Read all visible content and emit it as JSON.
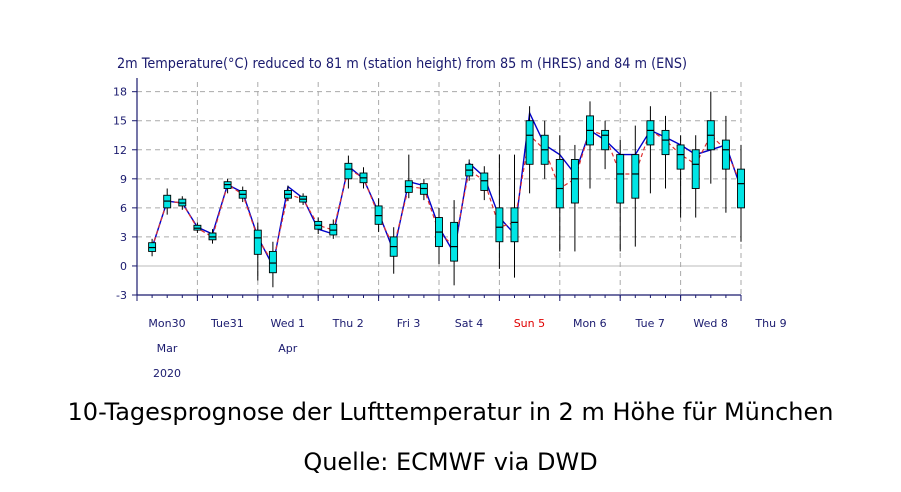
{
  "chart_data": {
    "type": "box-ensemble-line",
    "title": "2m Temperature(°C) reduced to 81 m (station height) from 85 m (HRES) and 84 m (ENS)",
    "ylim": [
      -3,
      19
    ],
    "yticks": [
      -3,
      0,
      3,
      6,
      9,
      12,
      15,
      18
    ],
    "xlim": [
      0,
      10
    ],
    "xticks": [
      {
        "x": 0,
        "lines": [
          "Mon30",
          "Mar",
          "2020"
        ],
        "color": "#1a1a6e"
      },
      {
        "x": 1,
        "lines": [
          "Tue31"
        ],
        "color": "#1a1a6e"
      },
      {
        "x": 2,
        "lines": [
          "Wed 1",
          "Apr"
        ],
        "color": "#1a1a6e"
      },
      {
        "x": 3,
        "lines": [
          "Thu 2"
        ],
        "color": "#1a1a6e"
      },
      {
        "x": 4,
        "lines": [
          "Fri 3"
        ],
        "color": "#1a1a6e"
      },
      {
        "x": 5,
        "lines": [
          "Sat 4"
        ],
        "color": "#1a1a6e"
      },
      {
        "x": 6,
        "lines": [
          "Sun 5"
        ],
        "color": "#e00000"
      },
      {
        "x": 7,
        "lines": [
          "Mon 6"
        ],
        "color": "#1a1a6e"
      },
      {
        "x": 8,
        "lines": [
          "Tue 7"
        ],
        "color": "#1a1a6e"
      },
      {
        "x": 9,
        "lines": [
          "Wed 8"
        ],
        "color": "#1a1a6e"
      },
      {
        "x": 10,
        "lines": [
          "Thu 9"
        ],
        "color": "#1a1a6e"
      }
    ],
    "grid": true,
    "colors": {
      "box": "#00e5e5",
      "hres": "#0000cc",
      "ens_median": "#e03030",
      "whisker": "#000000",
      "grid": "#aaaaaa"
    },
    "boxes": [
      {
        "x": 0.25,
        "min": 1.0,
        "q1": 1.5,
        "med": 1.9,
        "q3": 2.4,
        "max": 2.8
      },
      {
        "x": 0.5,
        "min": 5.3,
        "q1": 6.0,
        "med": 6.7,
        "q3": 7.3,
        "max": 8.0
      },
      {
        "x": 0.75,
        "min": 5.8,
        "q1": 6.2,
        "med": 6.5,
        "q3": 6.9,
        "max": 7.2
      },
      {
        "x": 1.0,
        "min": 3.4,
        "q1": 3.7,
        "med": 3.9,
        "q3": 4.2,
        "max": 4.5
      },
      {
        "x": 1.25,
        "min": 2.3,
        "q1": 2.7,
        "med": 3.0,
        "q3": 3.4,
        "max": 3.8
      },
      {
        "x": 1.5,
        "min": 7.5,
        "q1": 8.0,
        "med": 8.4,
        "q3": 8.7,
        "max": 9.0
      },
      {
        "x": 1.75,
        "min": 6.6,
        "q1": 7.0,
        "med": 7.4,
        "q3": 7.8,
        "max": 8.2
      },
      {
        "x": 2.0,
        "min": -1.5,
        "q1": 1.2,
        "med": 2.9,
        "q3": 3.7,
        "max": 4.5
      },
      {
        "x": 2.25,
        "min": -2.2,
        "q1": -0.7,
        "med": 0.3,
        "q3": 1.5,
        "max": 2.5
      },
      {
        "x": 2.5,
        "min": 6.7,
        "q1": 7.0,
        "med": 7.4,
        "q3": 7.8,
        "max": 8.3
      },
      {
        "x": 2.75,
        "min": 6.3,
        "q1": 6.6,
        "med": 6.9,
        "q3": 7.2,
        "max": 7.5
      },
      {
        "x": 3.0,
        "min": 3.3,
        "q1": 3.8,
        "med": 4.2,
        "q3": 4.6,
        "max": 5.0
      },
      {
        "x": 3.25,
        "min": 2.8,
        "q1": 3.2,
        "med": 3.7,
        "q3": 4.3,
        "max": 4.8
      },
      {
        "x": 3.5,
        "min": 8.0,
        "q1": 9.0,
        "med": 10.0,
        "q3": 10.6,
        "max": 11.4
      },
      {
        "x": 3.75,
        "min": 8.0,
        "q1": 8.6,
        "med": 9.1,
        "q3": 9.6,
        "max": 10.2
      },
      {
        "x": 4.0,
        "min": 3.5,
        "q1": 4.3,
        "med": 5.2,
        "q3": 6.2,
        "max": 7.0
      },
      {
        "x": 4.25,
        "min": -0.8,
        "q1": 1.0,
        "med": 2.0,
        "q3": 3.0,
        "max": 4.0
      },
      {
        "x": 4.5,
        "min": 7.0,
        "q1": 7.6,
        "med": 8.2,
        "q3": 8.8,
        "max": 11.5
      },
      {
        "x": 4.75,
        "min": 6.8,
        "q1": 7.4,
        "med": 8.0,
        "q3": 8.5,
        "max": 9.0
      },
      {
        "x": 5.0,
        "min": 0.2,
        "q1": 2.0,
        "med": 3.5,
        "q3": 5.0,
        "max": 6.0
      },
      {
        "x": 5.25,
        "min": -2.0,
        "q1": 0.5,
        "med": 2.0,
        "q3": 4.5,
        "max": 6.8
      },
      {
        "x": 5.5,
        "min": 8.8,
        "q1": 9.3,
        "med": 9.9,
        "q3": 10.5,
        "max": 11.0
      },
      {
        "x": 5.75,
        "min": 6.8,
        "q1": 7.8,
        "med": 8.8,
        "q3": 9.6,
        "max": 10.3
      },
      {
        "x": 6.0,
        "min": -0.3,
        "q1": 2.5,
        "med": 4.0,
        "q3": 6.0,
        "max": 11.5
      },
      {
        "x": 6.25,
        "min": -1.2,
        "q1": 2.5,
        "med": 4.5,
        "q3": 6.0,
        "max": 11.5
      },
      {
        "x": 6.5,
        "min": 7.5,
        "q1": 10.5,
        "med": 13.5,
        "q3": 15.0,
        "max": 16.5
      },
      {
        "x": 6.75,
        "min": 9.0,
        "q1": 10.5,
        "med": 12.0,
        "q3": 13.5,
        "max": 15.0
      },
      {
        "x": 7.0,
        "min": 1.5,
        "q1": 6.0,
        "med": 8.0,
        "q3": 11.0,
        "max": 13.5
      },
      {
        "x": 7.25,
        "min": 1.5,
        "q1": 6.5,
        "med": 9.0,
        "q3": 11.0,
        "max": 12.5
      },
      {
        "x": 7.5,
        "min": 8.0,
        "q1": 12.5,
        "med": 14.0,
        "q3": 15.5,
        "max": 17.0
      },
      {
        "x": 7.75,
        "min": 10.0,
        "q1": 12.0,
        "med": 13.5,
        "q3": 14.0,
        "max": 15.0
      },
      {
        "x": 8.0,
        "min": 1.5,
        "q1": 6.5,
        "med": 9.5,
        "q3": 11.5,
        "max": 13.0
      },
      {
        "x": 8.25,
        "min": 2.0,
        "q1": 7.0,
        "med": 9.5,
        "q3": 11.5,
        "max": 14.5
      },
      {
        "x": 8.5,
        "min": 7.5,
        "q1": 12.5,
        "med": 14.0,
        "q3": 15.0,
        "max": 16.5
      },
      {
        "x": 8.75,
        "min": 8.0,
        "q1": 11.5,
        "med": 13.0,
        "q3": 14.0,
        "max": 15.5
      },
      {
        "x": 9.0,
        "min": 5.0,
        "q1": 10.0,
        "med": 11.5,
        "q3": 12.5,
        "max": 13.5
      },
      {
        "x": 9.25,
        "min": 5.0,
        "q1": 8.0,
        "med": 10.5,
        "q3": 12.0,
        "max": 13.5
      },
      {
        "x": 9.5,
        "min": 8.5,
        "q1": 12.0,
        "med": 13.5,
        "q3": 15.0,
        "max": 18.0
      },
      {
        "x": 9.75,
        "min": 5.5,
        "q1": 10.0,
        "med": 12.0,
        "q3": 13.0,
        "max": 15.5
      },
      {
        "x": 10.0,
        "min": 2.5,
        "q1": 6.0,
        "med": 8.5,
        "q3": 10.0,
        "max": 12.5
      }
    ],
    "hres": [
      [
        0.25,
        1.9
      ],
      [
        0.5,
        6.7
      ],
      [
        0.75,
        6.5
      ],
      [
        1.0,
        4.0
      ],
      [
        1.25,
        3.3
      ],
      [
        1.5,
        8.4
      ],
      [
        1.75,
        7.6
      ],
      [
        2.0,
        3.0
      ],
      [
        2.25,
        0.0
      ],
      [
        2.5,
        8.2
      ],
      [
        2.75,
        7.0
      ],
      [
        3.0,
        3.8
      ],
      [
        3.25,
        3.3
      ],
      [
        3.5,
        10.3
      ],
      [
        3.75,
        9.0
      ],
      [
        4.0,
        5.5
      ],
      [
        4.25,
        1.5
      ],
      [
        4.5,
        8.7
      ],
      [
        4.75,
        8.3
      ],
      [
        5.0,
        4.0
      ],
      [
        5.25,
        1.3
      ],
      [
        5.5,
        10.6
      ],
      [
        5.75,
        9.2
      ],
      [
        6.0,
        5.0
      ],
      [
        6.25,
        3.3
      ],
      [
        6.5,
        15.8
      ],
      [
        6.75,
        12.5
      ],
      [
        7.0,
        11.5
      ],
      [
        7.25,
        9.5
      ],
      [
        7.5,
        14.0
      ],
      [
        7.75,
        13.0
      ],
      [
        8.0,
        11.5
      ],
      [
        8.25,
        11.5
      ],
      [
        8.5,
        14.0
      ],
      [
        8.75,
        13.3
      ],
      [
        9.0,
        12.5
      ],
      [
        9.25,
        11.5
      ],
      [
        9.5,
        12.0
      ],
      [
        9.75,
        12.5
      ],
      [
        10.0,
        8.0
      ]
    ]
  },
  "caption": {
    "line1": "10-Tagesprognose der Lufttemperatur in 2 m Höhe für München",
    "line2": "Quelle: ECMWF via DWD"
  }
}
